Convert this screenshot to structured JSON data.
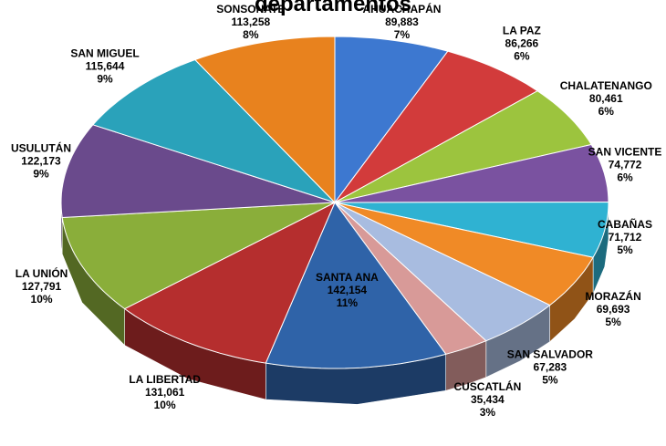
{
  "chart_data": {
    "type": "pie",
    "title": "departamentos",
    "categories": [
      "AHUACHAPÁN",
      "LA PAZ",
      "CHALATENANGO",
      "SAN VICENTE",
      "CABAÑAS",
      "MORAZÁN",
      "SAN SALVADOR",
      "CUSCATLÁN",
      "SANTA ANA",
      "LA LIBERTAD",
      "LA UNIÓN",
      "USULUTÁN",
      "SAN MIGUEL",
      "SONSONATE"
    ],
    "values": [
      89883,
      86266,
      80461,
      74772,
      71712,
      69693,
      67283,
      35434,
      142154,
      131061,
      127791,
      122173,
      115644,
      113258
    ],
    "value_labels": [
      "89,883",
      "86,266",
      "80,461",
      "74,772",
      "71,712",
      "69,693",
      "67,283",
      "35,434",
      "142,154",
      "131,061",
      "127,791",
      "122,173",
      "115,644",
      "113,258"
    ],
    "percent_labels": [
      "7%",
      "6%",
      "6%",
      "6%",
      "5%",
      "5%",
      "5%",
      "3%",
      "11%",
      "10%",
      "10%",
      "9%",
      "9%",
      "8%"
    ],
    "colors": [
      "#3d78d0",
      "#d23b3b",
      "#9cc43e",
      "#7a52a0",
      "#2fb2d2",
      "#f08a26",
      "#a8bce0",
      "#d89a98",
      "#2f63a8",
      "#b52e2e",
      "#8aae3a",
      "#6a4a8c",
      "#2aa2ba",
      "#e8821e"
    ]
  }
}
